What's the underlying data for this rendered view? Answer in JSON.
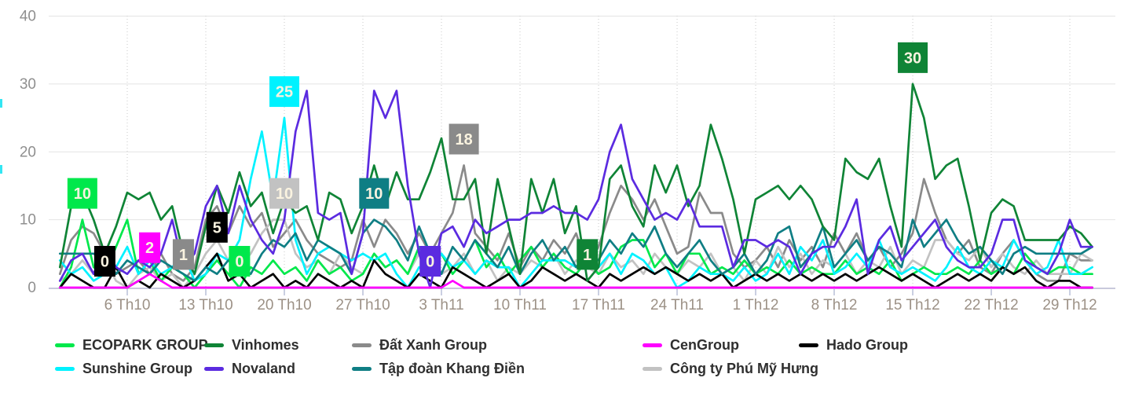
{
  "chart_data": {
    "type": "line",
    "title": "",
    "xlabel": "",
    "ylabel": "",
    "ylim": [
      0,
      40
    ],
    "y_ticks": [
      0,
      10,
      20,
      30,
      40
    ],
    "x_tick_labels": [
      "6 Th10",
      "13 Th10",
      "20 Th10",
      "27 Th10",
      "3 Th11",
      "10 Th11",
      "17 Th11",
      "24 Th11",
      "1 Th12",
      "8 Th12",
      "15 Th12",
      "22 Th12",
      "29 Th12"
    ],
    "x_tick_days": [
      6,
      13,
      20,
      27,
      34,
      41,
      48,
      55,
      62,
      69,
      76,
      83,
      90
    ],
    "grid": {
      "horizontal_solid": true,
      "vertical_dotted": true,
      "legend_position": "bottom"
    },
    "x_dates": [
      "30 Th9",
      "1 Th10",
      "2 Th10",
      "3 Th10",
      "4 Th10",
      "5 Th10",
      "6 Th10",
      "7 Th10",
      "8 Th10",
      "9 Th10",
      "10 Th10",
      "11 Th10",
      "12 Th10",
      "13 Th10",
      "14 Th10",
      "15 Th10",
      "16 Th10",
      "17 Th10",
      "18 Th10",
      "19 Th10",
      "20 Th10",
      "21 Th10",
      "22 Th10",
      "23 Th10",
      "24 Th10",
      "25 Th10",
      "26 Th10",
      "27 Th10",
      "28 Th10",
      "29 Th10",
      "30 Th10",
      "31 Th10",
      "1 Th11",
      "2 Th11",
      "3 Th11",
      "4 Th11",
      "5 Th11",
      "6 Th11",
      "7 Th11",
      "8 Th11",
      "9 Th11",
      "10 Th11",
      "11 Th11",
      "12 Th11",
      "13 Th11",
      "14 Th11",
      "15 Th11",
      "16 Th11",
      "17 Th11",
      "18 Th11",
      "19 Th11",
      "20 Th11",
      "21 Th11",
      "22 Th11",
      "23 Th11",
      "24 Th11",
      "25 Th11",
      "26 Th11",
      "27 Th11",
      "28 Th11",
      "29 Th11",
      "30 Th11",
      "1 Th12",
      "2 Th12",
      "3 Th12",
      "4 Th12",
      "5 Th12",
      "6 Th12",
      "7 Th12",
      "8 Th12",
      "9 Th12",
      "10 Th12",
      "11 Th12",
      "12 Th12",
      "13 Th12",
      "14 Th12",
      "15 Th12",
      "16 Th12",
      "17 Th12",
      "18 Th12",
      "19 Th12",
      "20 Th12",
      "21 Th12",
      "22 Th12",
      "23 Th12",
      "24 Th12",
      "25 Th12",
      "26 Th12",
      "27 Th12",
      "28 Th12",
      "29 Th12",
      "30 Th12",
      "31 Th12"
    ],
    "series": [
      {
        "name": "ECOPARK GROUP",
        "color": "#00E84B",
        "values": [
          0,
          3,
          10,
          3,
          2,
          6,
          10,
          2,
          4,
          1,
          3,
          2,
          0,
          2,
          4,
          2,
          0,
          3,
          2,
          4,
          2,
          3,
          1,
          4,
          2,
          3,
          1,
          2,
          5,
          3,
          4,
          2,
          6,
          3,
          5,
          2,
          4,
          7,
          3,
          5,
          2,
          4,
          6,
          3,
          5,
          3,
          2,
          4,
          2,
          3,
          6,
          7,
          7,
          3,
          5,
          2,
          5,
          5,
          2,
          3,
          2,
          4,
          2,
          3,
          2,
          4,
          2,
          3,
          2,
          2,
          4,
          2,
          3,
          2,
          4,
          1,
          2,
          3,
          2,
          2,
          3,
          2,
          4,
          2,
          3,
          2,
          5,
          3,
          2,
          3,
          3,
          2,
          2
        ]
      },
      {
        "name": "Vinhomes",
        "color": "#0F8436",
        "values": [
          3,
          12,
          14,
          10,
          5,
          9,
          14,
          13,
          14,
          10,
          12,
          5,
          2,
          9,
          15,
          11,
          17,
          12,
          14,
          8,
          13,
          11,
          12,
          7,
          14,
          13,
          8,
          12,
          18,
          12,
          17,
          13,
          13,
          17,
          22,
          13,
          13,
          16,
          5,
          16,
          9,
          2,
          16,
          11,
          16,
          8,
          12,
          1,
          3,
          16,
          18,
          12,
          9,
          18,
          14,
          18,
          12,
          15,
          24,
          19,
          13,
          5,
          13,
          14,
          15,
          13,
          15,
          13,
          9,
          7,
          19,
          17,
          16,
          19,
          12,
          6,
          30,
          25,
          16,
          18,
          19,
          12,
          4,
          11,
          13,
          12,
          7,
          7,
          7,
          7,
          9,
          8,
          6
        ]
      },
      {
        "name": "Đất Xanh Group",
        "color": "#8A8A8A",
        "values": [
          2,
          7,
          9,
          8,
          5,
          2,
          3,
          4,
          2,
          5,
          2,
          1,
          3,
          10,
          12,
          8,
          12,
          9,
          11,
          6,
          8,
          10,
          7,
          5,
          4,
          3,
          4,
          10,
          6,
          10,
          8,
          5,
          8,
          5,
          8,
          11,
          18,
          8,
          6,
          4,
          8,
          3,
          6,
          4,
          7,
          5,
          8,
          3,
          6,
          11,
          15,
          13,
          10,
          13,
          9,
          5,
          6,
          14,
          11,
          11,
          5,
          3,
          4,
          6,
          3,
          7,
          4,
          6,
          3,
          8,
          5,
          8,
          4,
          6,
          3,
          5,
          8,
          16,
          11,
          7,
          5,
          7,
          3,
          2,
          5,
          7,
          4,
          2,
          1,
          1,
          5,
          4,
          4
        ]
      },
      {
        "name": "CenGroup",
        "color": "#FF00FF",
        "values": [
          0,
          0,
          0,
          0,
          0,
          0,
          0,
          1,
          2,
          1,
          0,
          0,
          0,
          0,
          0,
          0,
          0,
          0,
          0,
          0,
          0,
          0,
          0,
          0,
          0,
          0,
          0,
          0,
          0,
          0,
          0,
          0,
          0,
          0,
          0,
          1,
          0,
          0,
          0,
          0,
          0,
          0,
          0,
          0,
          0,
          0,
          0,
          0,
          0,
          0,
          0,
          0,
          0,
          0,
          0,
          0,
          0,
          0,
          0,
          0,
          0,
          0,
          0,
          0,
          0,
          0,
          0,
          0,
          0,
          0,
          0,
          0,
          0,
          0,
          0,
          0,
          0,
          0,
          0,
          0,
          0,
          0,
          0,
          0,
          0,
          0,
          0,
          0,
          0,
          0,
          0,
          0,
          0
        ]
      },
      {
        "name": "Hado Group",
        "color": "#000000",
        "values": [
          0,
          2,
          1,
          0,
          0,
          3,
          0,
          1,
          0,
          2,
          1,
          0,
          1,
          3,
          5,
          1,
          2,
          0,
          1,
          2,
          0,
          1,
          0,
          2,
          1,
          0,
          1,
          0,
          4,
          2,
          1,
          0,
          2,
          1,
          0,
          3,
          2,
          1,
          0,
          1,
          2,
          0,
          1,
          3,
          2,
          1,
          2,
          1,
          0,
          2,
          1,
          2,
          3,
          2,
          3,
          2,
          1,
          2,
          1,
          2,
          0,
          1,
          2,
          1,
          2,
          1,
          2,
          1,
          2,
          1,
          2,
          1,
          2,
          3,
          2,
          1,
          2,
          1,
          0,
          1,
          2,
          1,
          2,
          1,
          3,
          2,
          3,
          1,
          0,
          1,
          1,
          0,
          0
        ]
      },
      {
        "name": "Sunshine Group",
        "color": "#00F2FF",
        "values": [
          4,
          2,
          3,
          1,
          2,
          3,
          6,
          2,
          4,
          2,
          3,
          5,
          1,
          2,
          5,
          4,
          7,
          16,
          23,
          13,
          25,
          7,
          2,
          5,
          6,
          5,
          4,
          5,
          4,
          5,
          2,
          0,
          3,
          2,
          5,
          3,
          4,
          2,
          4,
          3,
          3,
          0,
          2,
          4,
          4,
          4,
          3,
          4,
          3,
          5,
          2,
          5,
          4,
          2,
          3,
          0,
          1,
          3,
          2,
          2,
          1,
          3,
          1,
          2,
          5,
          2,
          6,
          4,
          7,
          2,
          3,
          5,
          3,
          7,
          3,
          2,
          3,
          2,
          1,
          3,
          6,
          3,
          2,
          4,
          3,
          7,
          4,
          2,
          3,
          7,
          2,
          2,
          3
        ]
      },
      {
        "name": "Novaland",
        "color": "#5B2BE0",
        "values": [
          1,
          4,
          5,
          2,
          6,
          3,
          2,
          4,
          3,
          5,
          10,
          3,
          5,
          12,
          15,
          8,
          15,
          10,
          7,
          5,
          10,
          23,
          29,
          11,
          10,
          11,
          2,
          8,
          29,
          25,
          29,
          15,
          5,
          0,
          8,
          9,
          6,
          10,
          8,
          9,
          10,
          10,
          11,
          11,
          12,
          11,
          11,
          10,
          13,
          20,
          24,
          16,
          13,
          10,
          11,
          10,
          13,
          9,
          9,
          9,
          3,
          7,
          7,
          6,
          7,
          6,
          2,
          5,
          6,
          6,
          9,
          13,
          2,
          7,
          9,
          4,
          6,
          8,
          10,
          6,
          4,
          3,
          3,
          5,
          10,
          10,
          4,
          3,
          2,
          5,
          10,
          6,
          6
        ]
      },
      {
        "name": "Tập đoàn Khang Điền",
        "color": "#0F7E84",
        "values": [
          5,
          5,
          5,
          5,
          4,
          2,
          4,
          3,
          2,
          4,
          3,
          2,
          1,
          3,
          2,
          4,
          3,
          2,
          5,
          7,
          6,
          8,
          4,
          7,
          6,
          5,
          2,
          8,
          10,
          9,
          7,
          4,
          9,
          5,
          2,
          6,
          4,
          7,
          5,
          3,
          6,
          2,
          5,
          7,
          4,
          6,
          3,
          5,
          4,
          7,
          5,
          8,
          6,
          9,
          5,
          3,
          5,
          7,
          4,
          2,
          3,
          5,
          2,
          4,
          8,
          9,
          3,
          5,
          9,
          3,
          5,
          7,
          4,
          6,
          5,
          3,
          10,
          6,
          8,
          10,
          7,
          5,
          6,
          4,
          2,
          5,
          6,
          5,
          5,
          5,
          5,
          5,
          6
        ]
      },
      {
        "name": "Công ty Phú Mỹ Hưng",
        "color": "#C2C2C2",
        "values": [
          1,
          2,
          4,
          2,
          4,
          1,
          0,
          2,
          3,
          1,
          2,
          0,
          2,
          5,
          7,
          4,
          3,
          5,
          8,
          10,
          10,
          5,
          3,
          4,
          2,
          5,
          3,
          2,
          5,
          3,
          4,
          2,
          5,
          4,
          2,
          3,
          5,
          2,
          4,
          1,
          3,
          2,
          4,
          3,
          5,
          2,
          4,
          3,
          2,
          5,
          3,
          4,
          2,
          5,
          3,
          2,
          4,
          3,
          5,
          2,
          3,
          1,
          4,
          2,
          6,
          3,
          5,
          2,
          4,
          3,
          5,
          2,
          4,
          3,
          6,
          2,
          4,
          3,
          7,
          7,
          5,
          4,
          6,
          3,
          5,
          3,
          2,
          4,
          2,
          2,
          2,
          5,
          4
        ]
      }
    ],
    "annotations": [
      {
        "series": "ECOPARK GROUP",
        "value": 10,
        "day": 2
      },
      {
        "series": "Hado Group",
        "value": 0,
        "day": 4
      },
      {
        "series": "CenGroup",
        "value": 2,
        "day": 8
      },
      {
        "series": "Đất Xanh Group",
        "value": 1,
        "day": 11
      },
      {
        "series": "Hado Group",
        "value": 5,
        "day": 14
      },
      {
        "series": "ECOPARK GROUP",
        "value": 0,
        "day": 16
      },
      {
        "series": "Sunshine Group",
        "value": 25,
        "day": 20
      },
      {
        "series": "Công ty Phú Mỹ Hưng",
        "value": 10,
        "day": 20
      },
      {
        "series": "Tập đoàn Khang Điền",
        "value": 10,
        "day": 28
      },
      {
        "series": "Novaland",
        "value": 0,
        "day": 33
      },
      {
        "series": "Đất Xanh Group",
        "value": 18,
        "day": 36
      },
      {
        "series": "Vinhomes",
        "value": 1,
        "day": 47
      },
      {
        "series": "Vinhomes",
        "value": 30,
        "day": 76
      }
    ],
    "colors": {
      "badge_text": "#FAF3E0",
      "axis_text_y": "#8F8F8F",
      "axis_text_x": "#9C9186",
      "grid_h": "#E4E4E4",
      "grid_v": "#C9C9C9",
      "baseline": "#C8C9DC",
      "tick": "#B8BFD8",
      "legend_text": "#2F2F2F"
    }
  },
  "legend": {
    "rows": [
      [
        "ECOPARK GROUP",
        "Vinhomes",
        "Đất Xanh Group",
        "CenGroup",
        "Hado Group"
      ],
      [
        "Sunshine Group",
        "Novaland",
        "Tập đoàn Khang Điền",
        "Công ty Phú Mỹ Hưng"
      ]
    ]
  }
}
